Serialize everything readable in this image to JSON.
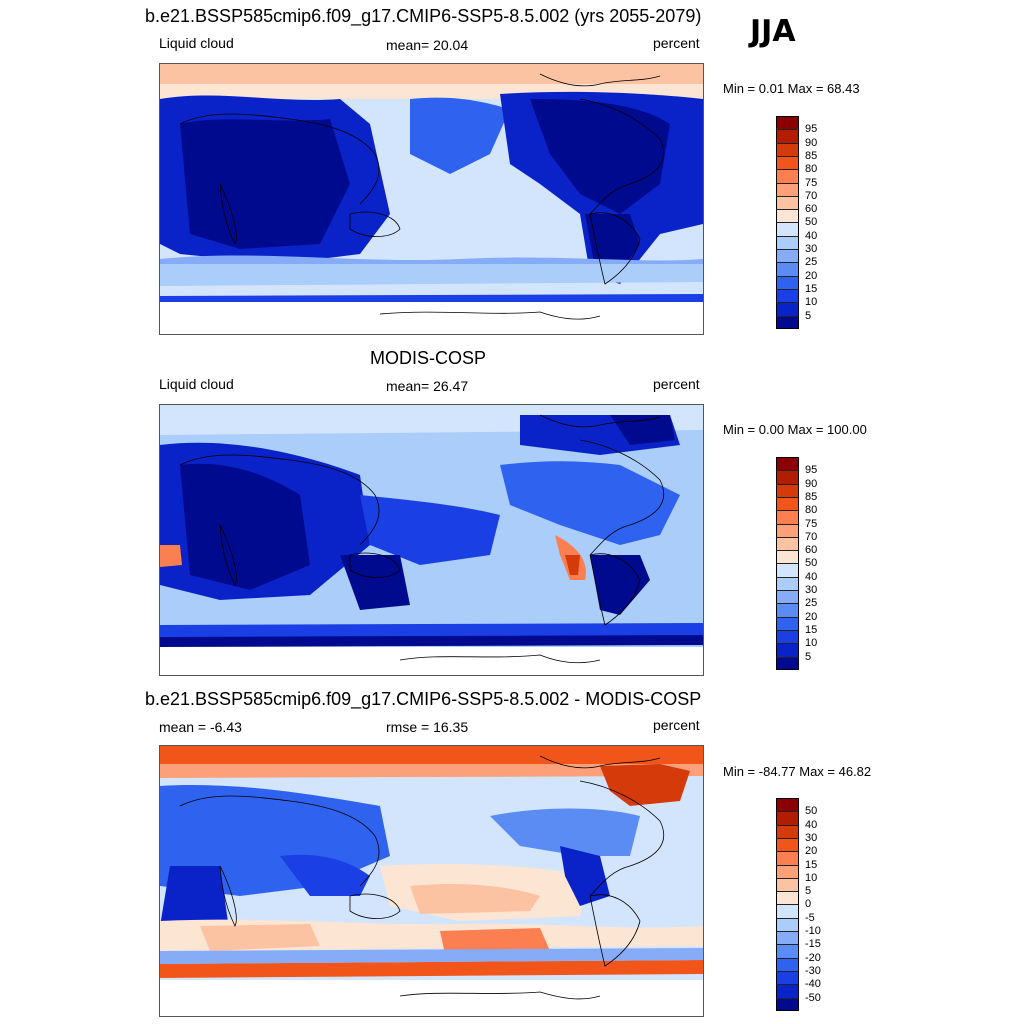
{
  "season": "JJA",
  "panels": [
    {
      "title": "b.e21.BSSP585cmip6.f09_g17.CMIP6-SSP5-8.5.002 (yrs 2055-2079)",
      "left_label": "Liquid cloud",
      "center_label": "mean=  20.04",
      "right_label": "percent",
      "minmax": "Min =   0.01 Max =  68.43",
      "colorbar": {
        "colors": [
          "#8b0000",
          "#b21c00",
          "#d43a0a",
          "#f2551a",
          "#fc7f52",
          "#fca07a",
          "#fcc3a3",
          "#fde5d4",
          "#d3e5fc",
          "#aacdf9",
          "#86acf7",
          "#5b8cf3",
          "#2f62ef",
          "#1a40e5",
          "#0a23c9",
          "#000a8f"
        ],
        "ticks": [
          "95",
          "90",
          "85",
          "80",
          "75",
          "70",
          "60",
          "50",
          "40",
          "30",
          "25",
          "20",
          "15",
          "10",
          "5"
        ]
      }
    },
    {
      "title": "MODIS-COSP",
      "left_label": "Liquid cloud",
      "center_label": "mean=  26.47",
      "right_label": "percent",
      "minmax": "Min =   0.00 Max = 100.00",
      "colorbar": {
        "colors": [
          "#8b0000",
          "#b21c00",
          "#d43a0a",
          "#f2551a",
          "#fc7f52",
          "#fca07a",
          "#fcc3a3",
          "#fde5d4",
          "#d3e5fc",
          "#aacdf9",
          "#86acf7",
          "#5b8cf3",
          "#2f62ef",
          "#1a40e5",
          "#0a23c9",
          "#000a8f"
        ],
        "ticks": [
          "95",
          "90",
          "85",
          "80",
          "75",
          "70",
          "60",
          "50",
          "40",
          "30",
          "25",
          "20",
          "15",
          "10",
          "5"
        ]
      }
    },
    {
      "title": "b.e21.BSSP585cmip6.f09_g17.CMIP6-SSP5-8.5.002 - MODIS-COSP",
      "left_label": "mean =  -6.43",
      "center_label": "rmse =  16.35",
      "right_label": "percent",
      "minmax": "Min = -84.77 Max =  46.82",
      "colorbar": {
        "colors": [
          "#8b0000",
          "#b21c00",
          "#d43a0a",
          "#f2551a",
          "#fc7f52",
          "#fca07a",
          "#fcc3a3",
          "#fde5d4",
          "#d3e5fc",
          "#aacdf9",
          "#86acf7",
          "#5b8cf3",
          "#2f62ef",
          "#1a40e5",
          "#0a23c9",
          "#000a8f"
        ],
        "ticks": [
          "50",
          "40",
          "30",
          "20",
          "15",
          "10",
          "5",
          "0",
          "-5",
          "-10",
          "-15",
          "-20",
          "-30",
          "-40",
          "-50"
        ]
      }
    }
  ]
}
